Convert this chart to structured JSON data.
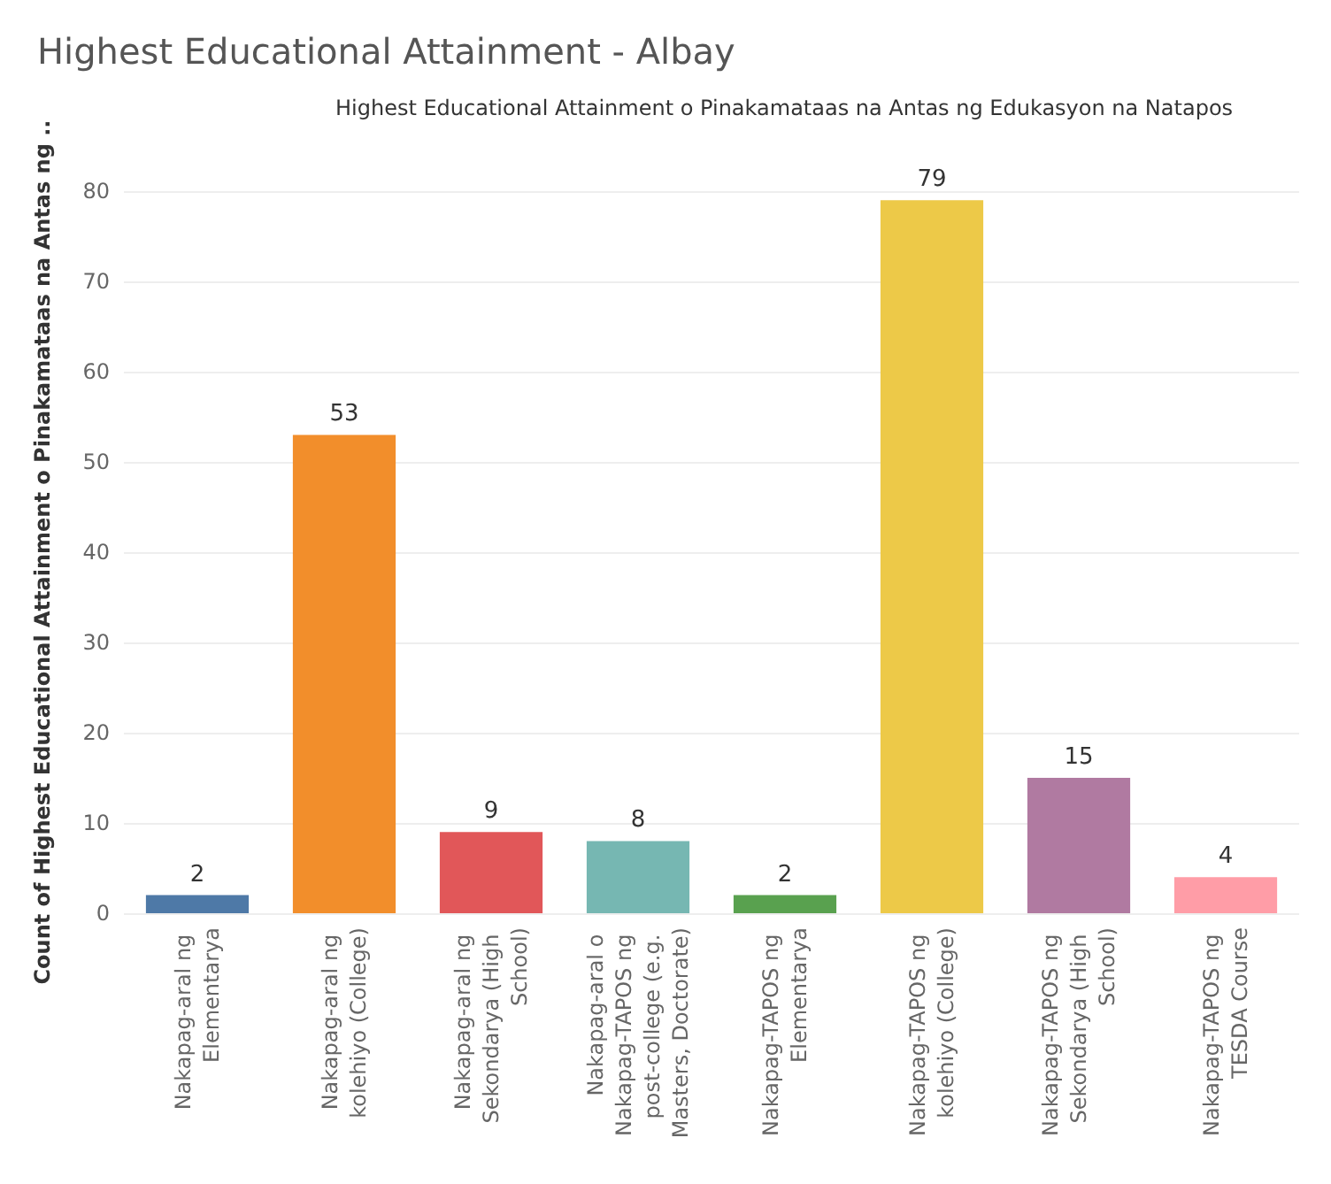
{
  "chart_data": {
    "type": "bar",
    "title": "Highest Educational Attainment - Albay",
    "subtitle": "Highest Educational Attainment o Pinakamataas na Antas ng Edukasyon na Natapos",
    "ylabel": "Count of Highest Educational Attainment o Pinakamataas na Antas ng ..",
    "categories": [
      "Nakapag-aral ng Elementarya",
      "Nakapag-aral ng kolehiyo (College)",
      "Nakapag-aral ng Sekondarya (High School)",
      "Nakapag-aral o Nakapag-TAPOS ng post-college (e.g. Masters, Doctorate)",
      "Nakapag-TAPOS ng Elementarya",
      "Nakapag-TAPOS ng kolehiyo (College)",
      "Nakapag-TAPOS ng Sekondarya (High School)",
      "Nakapag-TAPOS ng TESDA Course"
    ],
    "values": [
      2,
      53,
      9,
      8,
      2,
      79,
      15,
      4
    ],
    "colors": [
      "#4e79a7",
      "#f28e2b",
      "#e15759",
      "#76b7b2",
      "#59a14f",
      "#edc948",
      "#b07aa1",
      "#ff9da7"
    ],
    "ylim": [
      0,
      80
    ],
    "yticks": [
      0,
      10,
      20,
      30,
      40,
      50,
      60,
      70,
      80
    ],
    "grid": "y",
    "data_labels": true
  }
}
